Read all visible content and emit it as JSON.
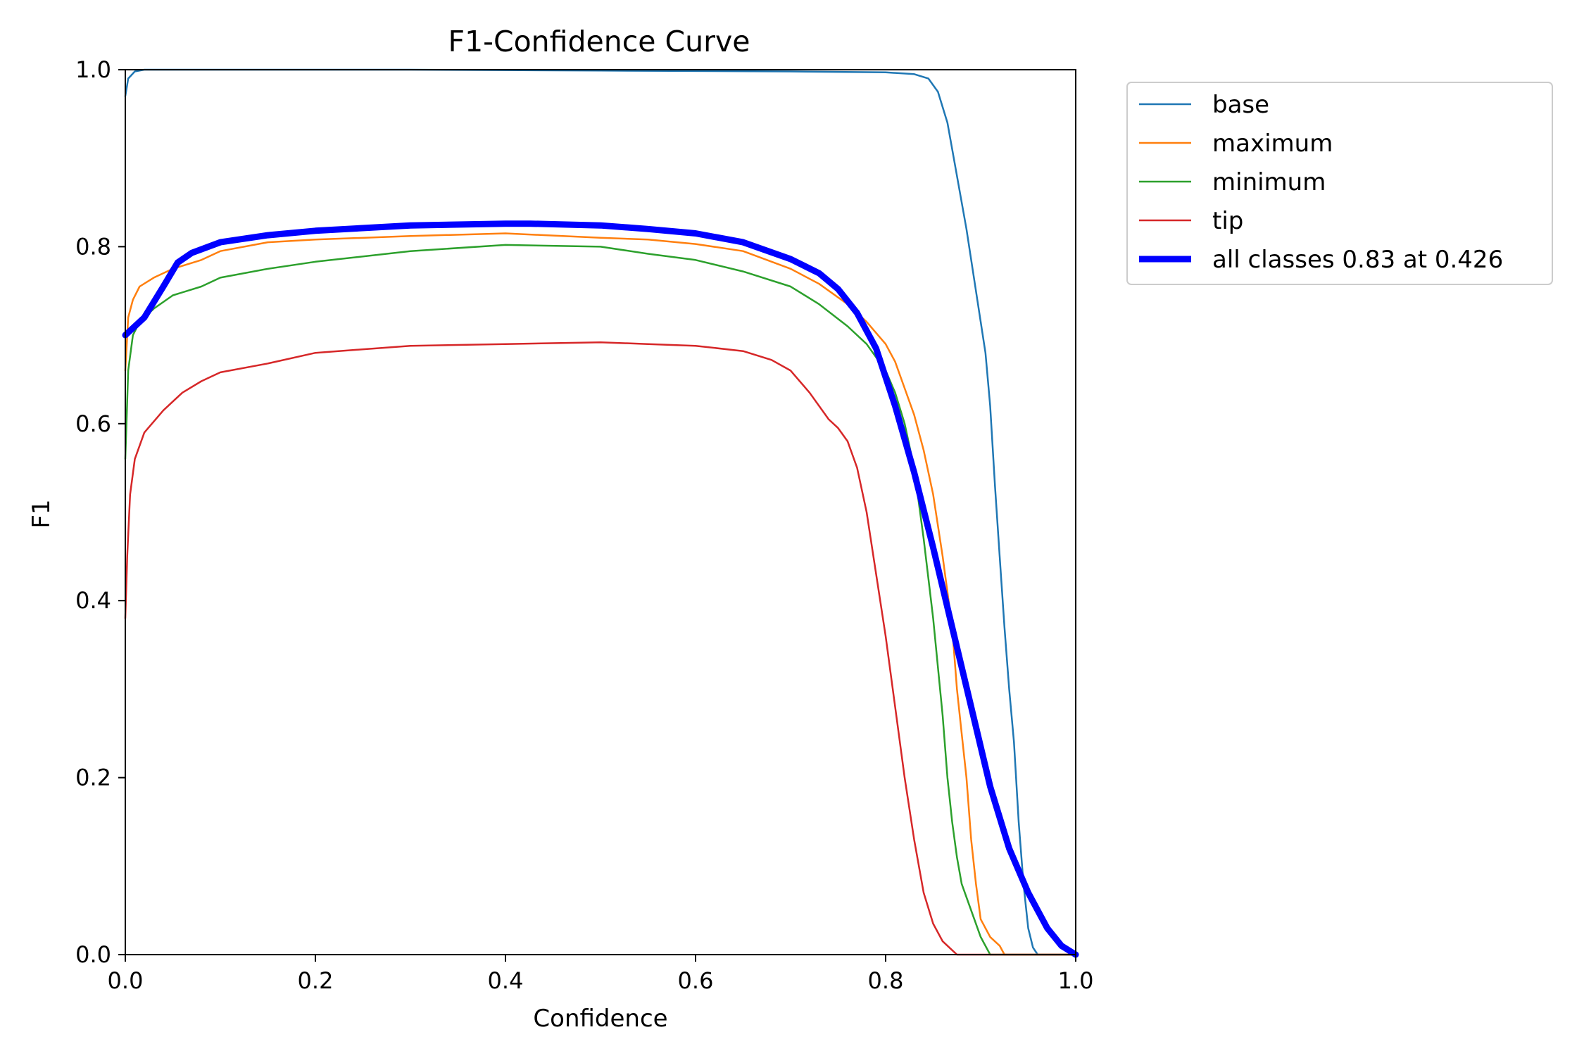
{
  "chart_data": {
    "type": "line",
    "title": "F1-Confidence Curve",
    "xlabel": "Confidence",
    "ylabel": "F1",
    "xlim": [
      0,
      1
    ],
    "ylim": [
      0,
      1
    ],
    "xticks": [
      "0.0",
      "0.2",
      "0.4",
      "0.6",
      "0.8",
      "1.0"
    ],
    "yticks": [
      "0.0",
      "0.2",
      "0.4",
      "0.6",
      "0.8",
      "1.0"
    ],
    "grid": false,
    "legend_position": "outside upper right",
    "series": [
      {
        "name": "base",
        "color": "#1f77b4",
        "points": [
          [
            0,
            0.97
          ],
          [
            0.003,
            0.99
          ],
          [
            0.01,
            0.998
          ],
          [
            0.02,
            1.0
          ],
          [
            0.1,
            1.0
          ],
          [
            0.3,
            1.0
          ],
          [
            0.5,
            0.999
          ],
          [
            0.7,
            0.998
          ],
          [
            0.8,
            0.997
          ],
          [
            0.83,
            0.995
          ],
          [
            0.845,
            0.99
          ],
          [
            0.855,
            0.975
          ],
          [
            0.865,
            0.94
          ],
          [
            0.875,
            0.88
          ],
          [
            0.885,
            0.82
          ],
          [
            0.895,
            0.75
          ],
          [
            0.905,
            0.68
          ],
          [
            0.91,
            0.62
          ],
          [
            0.915,
            0.53
          ],
          [
            0.92,
            0.45
          ],
          [
            0.925,
            0.37
          ],
          [
            0.93,
            0.3
          ],
          [
            0.935,
            0.24
          ],
          [
            0.94,
            0.15
          ],
          [
            0.945,
            0.08
          ],
          [
            0.95,
            0.03
          ],
          [
            0.955,
            0.008
          ],
          [
            0.96,
            0.0
          ],
          [
            1.0,
            0.0
          ]
        ]
      },
      {
        "name": "maximum",
        "color": "#ff7f0e",
        "points": [
          [
            0,
            0.66
          ],
          [
            0.003,
            0.72
          ],
          [
            0.008,
            0.74
          ],
          [
            0.015,
            0.755
          ],
          [
            0.03,
            0.765
          ],
          [
            0.05,
            0.775
          ],
          [
            0.08,
            0.785
          ],
          [
            0.1,
            0.795
          ],
          [
            0.15,
            0.805
          ],
          [
            0.2,
            0.808
          ],
          [
            0.3,
            0.812
          ],
          [
            0.4,
            0.815
          ],
          [
            0.5,
            0.81
          ],
          [
            0.55,
            0.808
          ],
          [
            0.6,
            0.803
          ],
          [
            0.65,
            0.795
          ],
          [
            0.7,
            0.775
          ],
          [
            0.73,
            0.758
          ],
          [
            0.76,
            0.735
          ],
          [
            0.78,
            0.715
          ],
          [
            0.8,
            0.69
          ],
          [
            0.81,
            0.67
          ],
          [
            0.82,
            0.64
          ],
          [
            0.83,
            0.61
          ],
          [
            0.84,
            0.57
          ],
          [
            0.85,
            0.52
          ],
          [
            0.86,
            0.45
          ],
          [
            0.87,
            0.37
          ],
          [
            0.875,
            0.3
          ],
          [
            0.88,
            0.25
          ],
          [
            0.885,
            0.2
          ],
          [
            0.89,
            0.13
          ],
          [
            0.895,
            0.08
          ],
          [
            0.9,
            0.04
          ],
          [
            0.91,
            0.02
          ],
          [
            0.92,
            0.01
          ],
          [
            0.925,
            0.0
          ],
          [
            1.0,
            0.0
          ]
        ]
      },
      {
        "name": "minimum",
        "color": "#2ca02c",
        "points": [
          [
            0,
            0.56
          ],
          [
            0.003,
            0.66
          ],
          [
            0.008,
            0.7
          ],
          [
            0.015,
            0.715
          ],
          [
            0.03,
            0.73
          ],
          [
            0.05,
            0.745
          ],
          [
            0.08,
            0.755
          ],
          [
            0.1,
            0.765
          ],
          [
            0.15,
            0.775
          ],
          [
            0.2,
            0.783
          ],
          [
            0.3,
            0.795
          ],
          [
            0.4,
            0.802
          ],
          [
            0.5,
            0.8
          ],
          [
            0.55,
            0.792
          ],
          [
            0.6,
            0.785
          ],
          [
            0.65,
            0.772
          ],
          [
            0.7,
            0.755
          ],
          [
            0.73,
            0.735
          ],
          [
            0.76,
            0.71
          ],
          [
            0.78,
            0.69
          ],
          [
            0.8,
            0.66
          ],
          [
            0.81,
            0.635
          ],
          [
            0.82,
            0.6
          ],
          [
            0.83,
            0.55
          ],
          [
            0.84,
            0.47
          ],
          [
            0.85,
            0.38
          ],
          [
            0.86,
            0.27
          ],
          [
            0.865,
            0.2
          ],
          [
            0.87,
            0.15
          ],
          [
            0.875,
            0.11
          ],
          [
            0.88,
            0.08
          ],
          [
            0.89,
            0.05
          ],
          [
            0.9,
            0.02
          ],
          [
            0.91,
            0.0
          ],
          [
            1.0,
            0.0
          ]
        ]
      },
      {
        "name": "tip",
        "color": "#d62728",
        "points": [
          [
            0,
            0.38
          ],
          [
            0.002,
            0.45
          ],
          [
            0.005,
            0.52
          ],
          [
            0.01,
            0.56
          ],
          [
            0.02,
            0.59
          ],
          [
            0.04,
            0.615
          ],
          [
            0.06,
            0.635
          ],
          [
            0.08,
            0.648
          ],
          [
            0.1,
            0.658
          ],
          [
            0.15,
            0.668
          ],
          [
            0.2,
            0.68
          ],
          [
            0.3,
            0.688
          ],
          [
            0.4,
            0.69
          ],
          [
            0.5,
            0.692
          ],
          [
            0.55,
            0.69
          ],
          [
            0.6,
            0.688
          ],
          [
            0.65,
            0.682
          ],
          [
            0.68,
            0.672
          ],
          [
            0.7,
            0.66
          ],
          [
            0.72,
            0.635
          ],
          [
            0.74,
            0.605
          ],
          [
            0.75,
            0.595
          ],
          [
            0.76,
            0.58
          ],
          [
            0.77,
            0.55
          ],
          [
            0.78,
            0.5
          ],
          [
            0.79,
            0.43
          ],
          [
            0.8,
            0.36
          ],
          [
            0.81,
            0.28
          ],
          [
            0.82,
            0.2
          ],
          [
            0.83,
            0.13
          ],
          [
            0.84,
            0.07
          ],
          [
            0.85,
            0.035
          ],
          [
            0.86,
            0.015
          ],
          [
            0.87,
            0.005
          ],
          [
            0.875,
            0.0
          ],
          [
            1.0,
            0.0
          ]
        ]
      },
      {
        "name": "all classes 0.83 at 0.426",
        "color": "#0000ff",
        "thick": true,
        "points": [
          [
            0,
            0.7
          ],
          [
            0.02,
            0.72
          ],
          [
            0.04,
            0.755
          ],
          [
            0.055,
            0.782
          ],
          [
            0.07,
            0.793
          ],
          [
            0.1,
            0.805
          ],
          [
            0.15,
            0.813
          ],
          [
            0.2,
            0.818
          ],
          [
            0.3,
            0.824
          ],
          [
            0.4,
            0.826
          ],
          [
            0.426,
            0.826
          ],
          [
            0.5,
            0.824
          ],
          [
            0.55,
            0.82
          ],
          [
            0.6,
            0.815
          ],
          [
            0.65,
            0.805
          ],
          [
            0.7,
            0.786
          ],
          [
            0.73,
            0.77
          ],
          [
            0.75,
            0.752
          ],
          [
            0.77,
            0.725
          ],
          [
            0.79,
            0.685
          ],
          [
            0.81,
            0.62
          ],
          [
            0.83,
            0.545
          ],
          [
            0.85,
            0.46
          ],
          [
            0.87,
            0.37
          ],
          [
            0.89,
            0.28
          ],
          [
            0.91,
            0.19
          ],
          [
            0.93,
            0.12
          ],
          [
            0.95,
            0.07
          ],
          [
            0.97,
            0.03
          ],
          [
            0.985,
            0.01
          ],
          [
            1.0,
            0.0
          ]
        ]
      }
    ]
  }
}
